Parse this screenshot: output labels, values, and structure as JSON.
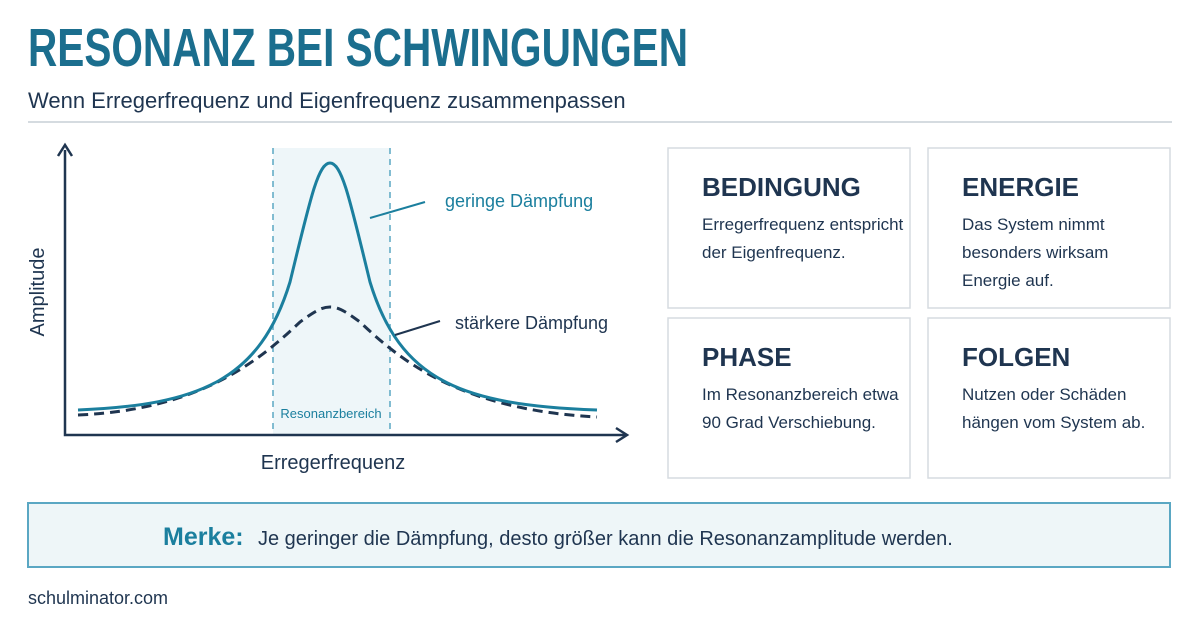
{
  "header": {
    "title": "RESONANZ BEI SCHWINGUNGEN",
    "subtitle": "Wenn Erregerfrequenz und Eigenfrequenz zusammenpassen"
  },
  "diagram": {
    "y_axis_label": "Amplitude",
    "x_axis_label": "Erregerfrequenz",
    "region_label": "Resonanzbereich",
    "curves": [
      {
        "label": "geringe Dämpfung"
      },
      {
        "label": "stärkere Dämpfung"
      }
    ]
  },
  "cards": [
    {
      "title": "BEDINGUNG",
      "lines": [
        "Erregerfrequenz entspricht",
        "der Eigenfrequenz."
      ]
    },
    {
      "title": "ENERGIE",
      "lines": [
        "Das System nimmt",
        "besonders wirksam",
        "Energie auf."
      ]
    },
    {
      "title": "PHASE",
      "lines": [
        "Im Resonanzbereich etwa",
        "90 Grad Verschiebung."
      ]
    },
    {
      "title": "FOLGEN",
      "lines": [
        "Nutzen oder Schäden",
        "hängen vom System ab."
      ]
    }
  ],
  "note": {
    "label": "Merke:",
    "text": "Je geringer die Dämpfung, desto größer kann die Resonanzamplitude werden."
  },
  "footer": {
    "source": "schulminator.com"
  }
}
